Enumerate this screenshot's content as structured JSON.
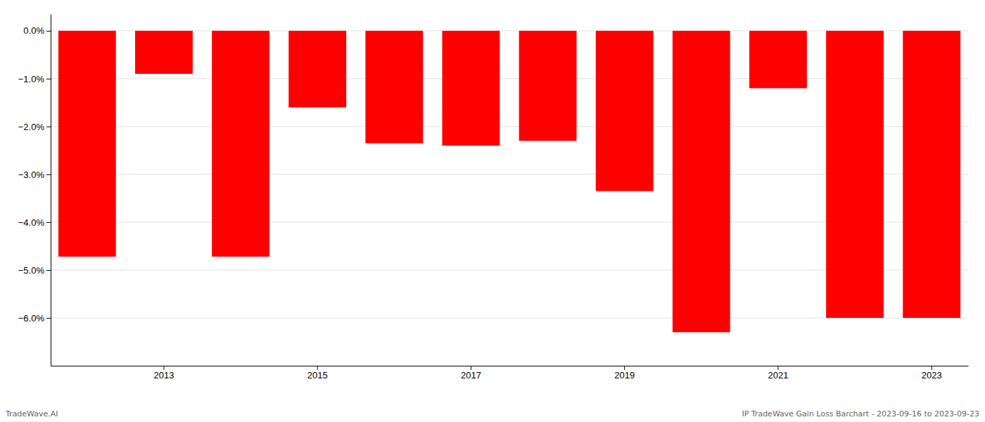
{
  "chart_data": {
    "type": "bar",
    "categories": [
      null,
      "2013",
      null,
      "2015",
      null,
      "2017",
      null,
      "2019",
      null,
      "2021",
      null,
      "2023"
    ],
    "values": [
      -4.72,
      -0.9,
      -4.72,
      -1.6,
      -2.35,
      -2.4,
      -2.3,
      -3.35,
      -6.3,
      -1.2,
      -6.0,
      -6.0
    ],
    "color": "#ff0000",
    "ylim": [
      -7.0,
      0.35
    ],
    "yticks": [
      {
        "value": 0.0,
        "label": "0.0%"
      },
      {
        "value": -1.0,
        "label": "−1.0%"
      },
      {
        "value": -2.0,
        "label": "−2.0%"
      },
      {
        "value": -3.0,
        "label": "−3.0%"
      },
      {
        "value": -4.0,
        "label": "−4.0%"
      },
      {
        "value": -5.0,
        "label": "−5.0%"
      },
      {
        "value": -6.0,
        "label": "−6.0%"
      }
    ],
    "grid": true,
    "annotations": [
      "TradeWave.AI",
      "IP TradeWave Gain Loss Barchart - 2023-09-16 to 2023-09-23"
    ]
  }
}
